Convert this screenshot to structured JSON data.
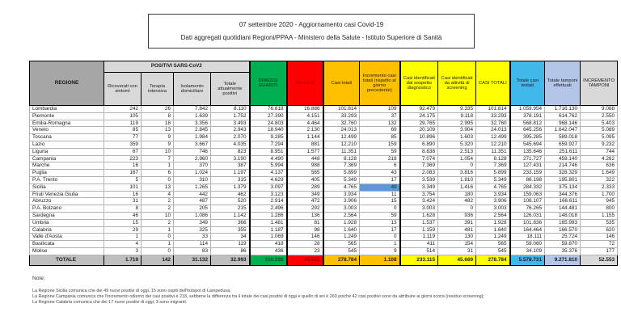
{
  "header": {
    "line1": "07 settembre 2020 - Aggiornamento casi Covid-19",
    "line2": "Dati aggregati quotidiani Regioni/PPAA - Ministero della Salute - Istituto Superiore di Sanità"
  },
  "table": {
    "columns": {
      "region": "REGIONE",
      "positivi_group": "POSITIVI SARS-CoV2",
      "sub": [
        "Ricoverati con sintomi",
        "Terapia intensiva",
        "Isolamento domiciliare",
        "Totale attualmente positivi"
      ],
      "rest": [
        "DIMESSI GUARITI",
        "Deceduti",
        "Casi totali",
        "Incremento casi totali (rispetto al giorno precedente)",
        "Casi identificati dal sospetto diagnostico",
        "Casi identificati da attività di screening",
        "CASI TOTALI",
        "Totale casi testati",
        "Totale tamponi effettuati",
        "INCREMENTO TAMPONI"
      ]
    },
    "rows": [
      {
        "region": "Lombardia",
        "values": [
          "242",
          "26",
          "7.842",
          "8.110",
          "76.818",
          "16.886",
          "101.814",
          "109",
          "92.479",
          "9.335",
          "101.814",
          "1.059.954",
          "1.716.130",
          "9.088"
        ]
      },
      {
        "region": "Piemonte",
        "values": [
          "105",
          "8",
          "1.639",
          "1.752",
          "27.390",
          "4.151",
          "33.293",
          "37",
          "24.175",
          "9.118",
          "33.293",
          "378.191",
          "614.762",
          "2.550"
        ]
      },
      {
        "region": "Emilia-Romagna",
        "values": [
          "119",
          "18",
          "3.356",
          "3.493",
          "24.803",
          "4.464",
          "32.760",
          "132",
          "29.765",
          "2.995",
          "32.760",
          "568.812",
          "968.146",
          "5.403"
        ]
      },
      {
        "region": "Veneto",
        "values": [
          "85",
          "13",
          "2.845",
          "2.943",
          "18.940",
          "2.130",
          "24.013",
          "69",
          "20.109",
          "3.904",
          "24.013",
          "645.256",
          "1.642.047",
          "5.089"
        ]
      },
      {
        "region": "Toscana",
        "values": [
          "77",
          "9",
          "1.984",
          "2.070",
          "9.285",
          "1.144",
          "12.499",
          "85",
          "10.896",
          "1.603",
          "12.499",
          "395.285",
          "589.018",
          "5.095"
        ]
      },
      {
        "region": "Lazio",
        "values": [
          "359",
          "9",
          "3.667",
          "4.035",
          "7.294",
          "881",
          "12.210",
          "159",
          "6.890",
          "5.320",
          "12.210",
          "545.694",
          "659.927",
          "9.232"
        ]
      },
      {
        "region": "Liguria",
        "values": [
          "67",
          "10",
          "746",
          "823",
          "8.951",
          "1.577",
          "11.351",
          "59",
          "8.838",
          "2.513",
          "11.351",
          "135.646",
          "251.611",
          "744"
        ]
      },
      {
        "region": "Campania",
        "values": [
          "223",
          "7",
          "2.960",
          "3.190",
          "4.490",
          "448",
          "8.128",
          "218",
          "7.074",
          "1.054",
          "8.128",
          "271.727",
          "459.140",
          "4.262"
        ]
      },
      {
        "region": "Marche",
        "values": [
          "16",
          "1",
          "370",
          "387",
          "5.994",
          "988",
          "7.369",
          "6",
          "7.369",
          "0",
          "7.369",
          "127.431",
          "214.746",
          "636"
        ]
      },
      {
        "region": "Puglia",
        "values": [
          "167",
          "6",
          "1.024",
          "1.197",
          "4.137",
          "565",
          "5.899",
          "43",
          "2.083",
          "3.816",
          "5.899",
          "233.159",
          "328.329",
          "1.649"
        ]
      },
      {
        "region": "P.A. Trento",
        "values": [
          "5",
          "0",
          "310",
          "315",
          "4.629",
          "405",
          "5.349",
          "17",
          "3.539",
          "1.810",
          "5.349",
          "86.198",
          "195.801",
          "322"
        ]
      },
      {
        "region": "Sicilia",
        "values": [
          "101",
          "13",
          "1.265",
          "1.379",
          "3.097",
          "289",
          "4.765",
          "49",
          "3.349",
          "1.416",
          "4.765",
          "284.332",
          "375.134",
          "2.333"
        ]
      },
      {
        "region": "Friuli Venezia Giulia",
        "values": [
          "16",
          "4",
          "442",
          "462",
          "3.123",
          "349",
          "3.934",
          "11",
          "3.754",
          "180",
          "3.934",
          "159.063",
          "344.376",
          "1.700"
        ]
      },
      {
        "region": "Abruzzo",
        "values": [
          "31",
          "2",
          "487",
          "520",
          "2.914",
          "472",
          "3.906",
          "15",
          "3.424",
          "482",
          "3.906",
          "108.107",
          "166.611",
          "945"
        ]
      },
      {
        "region": "P.A. Bolzano",
        "values": [
          "8",
          "2",
          "205",
          "215",
          "2.496",
          "292",
          "3.003",
          "0",
          "3.003",
          "0",
          "3.003",
          "76.265",
          "144.481",
          "800"
        ]
      },
      {
        "region": "Sardegna",
        "values": [
          "46",
          "10",
          "1.086",
          "1.142",
          "1.286",
          "136",
          "2.564",
          "59",
          "1.628",
          "936",
          "2.564",
          "126.031",
          "148.018",
          "1.155"
        ]
      },
      {
        "region": "Umbria",
        "values": [
          "15",
          "2",
          "349",
          "366",
          "1.481",
          "81",
          "1.928",
          "13",
          "1.537",
          "391",
          "1.928",
          "101.836",
          "165.993",
          "535"
        ]
      },
      {
        "region": "Calabria",
        "values": [
          "29",
          "1",
          "325",
          "355",
          "1.187",
          "98",
          "1.640",
          "17",
          "1.159",
          "481",
          "1.640",
          "164.464",
          "166.570",
          "620"
        ]
      },
      {
        "region": "Valle d'Aosta",
        "values": [
          "1",
          "0",
          "33",
          "34",
          "1.069",
          "146",
          "1.249",
          "0",
          "1.119",
          "130",
          "1.249",
          "18.111",
          "25.724",
          "146"
        ]
      },
      {
        "region": "Basilicata",
        "values": [
          "4",
          "1",
          "114",
          "119",
          "418",
          "28",
          "565",
          "1",
          "411",
          "154",
          "565",
          "59.060",
          "59.870",
          "72"
        ]
      },
      {
        "region": "Molise",
        "values": [
          "3",
          "0",
          "83",
          "86",
          "436",
          "23",
          "545",
          "9",
          "514",
          "31",
          "545",
          "34.109",
          "35.376",
          "177"
        ]
      }
    ],
    "total": {
      "region": "TOTALE",
      "values": [
        "1.719",
        "142",
        "31.132",
        "32.993",
        "210.238",
        "35.553",
        "278.784",
        "1.108",
        "233.115",
        "45.669",
        "278.784",
        "5.578.731",
        "9.271.810",
        "52.553"
      ]
    },
    "highlight": {
      "region": "Sicilia",
      "value_index": 7,
      "value": "49"
    }
  },
  "notes": {
    "title": "Note:",
    "items": [
      "La Regione Sicilia comunica che dei 49 nuovi positivi di oggi, 15 sono ospiti dell'hotspot di Lampedusa;",
      "La Regione Campania comunica che l'incremento odierno dei casi positivi è 218, sebbene la differenza tra il totale dei casi positivi di oggi e quello di ieri è 260 poiché 42 casi positivi sono da attribuire ai giorni scorsi (residuo screening);",
      "La Regione Calabria comunica che dei 17 nuovi positivi di oggi, 3 sono migranti."
    ]
  },
  "colors": {
    "green": "#00b050",
    "red": "#ff0000",
    "orange": "#ffc000",
    "yellow": "#ffff00",
    "blue": "#41b8ea",
    "light_blue": "#b4c6e7",
    "gray_header": "#a6a6a6",
    "light_gray": "#d9d9d9",
    "total_gray": "#bfbfbf",
    "highlight_blue": "#5b9bd5"
  }
}
